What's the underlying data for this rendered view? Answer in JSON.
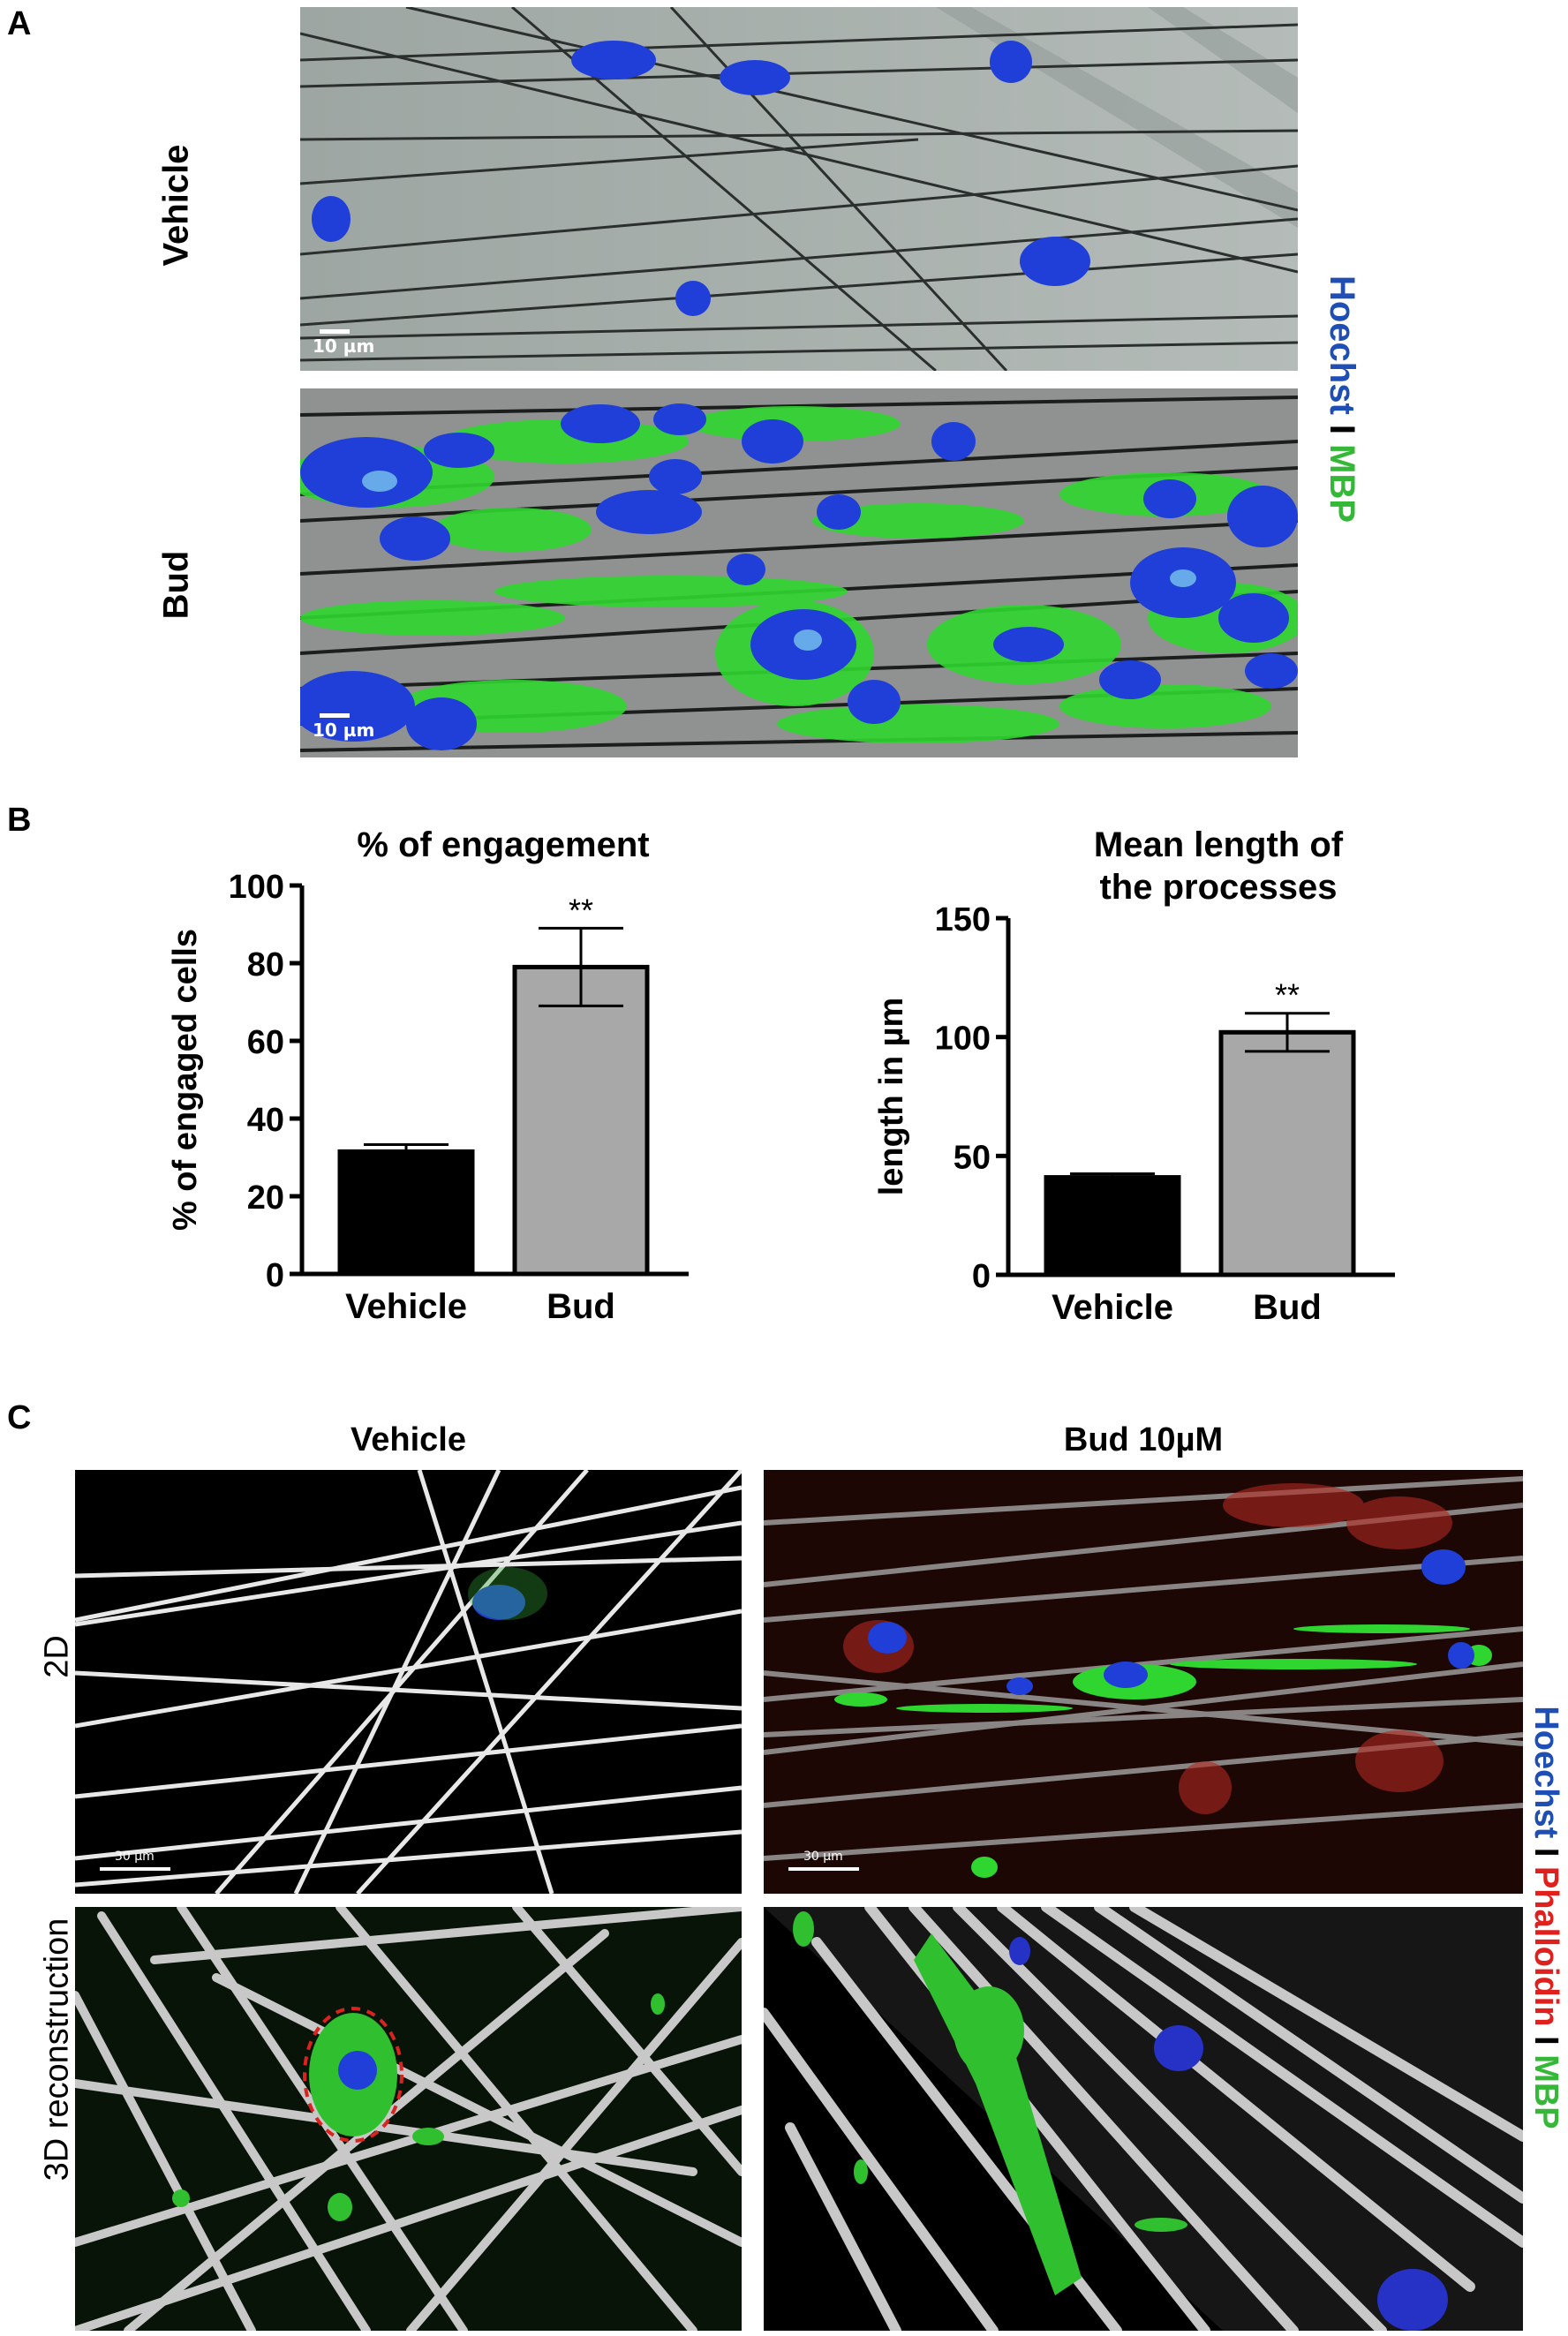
{
  "panel_A": {
    "letter": "A",
    "row_labels": [
      "Vehicle",
      "Bud"
    ],
    "scale_bar": "10 µm",
    "stain_legend": [
      {
        "text": "Hoechst",
        "color": "#1f4fb5"
      },
      {
        "text": " I ",
        "color": "#000000"
      },
      {
        "text": "MBP",
        "color": "#35b837"
      }
    ]
  },
  "panel_B": {
    "letter": "B"
  },
  "chart_data": [
    {
      "type": "bar",
      "title": "% of engagement",
      "ylabel": "% of engaged cells",
      "xlabel": "",
      "categories": [
        "Vehicle",
        "Bud"
      ],
      "values": [
        31.5,
        79
      ],
      "errors": [
        1.8,
        10
      ],
      "significance": [
        "",
        "**"
      ],
      "ylim": [
        0,
        100
      ],
      "yticks": [
        "0",
        "20",
        "40",
        "60",
        "80",
        "100"
      ],
      "bar_colors": [
        "#000000",
        "#a8a8a8"
      ]
    },
    {
      "type": "bar",
      "title": "Mean length of the processes",
      "title_lines": [
        "Mean length of",
        "the processes"
      ],
      "ylabel": "length in µm",
      "xlabel": "",
      "categories": [
        "Vehicle",
        "Bud"
      ],
      "values": [
        41,
        102
      ],
      "errors": [
        1.5,
        8
      ],
      "significance": [
        "",
        "**"
      ],
      "ylim": [
        0,
        150
      ],
      "yticks": [
        "0",
        "50",
        "100",
        "150"
      ],
      "bar_colors": [
        "#000000",
        "#a8a8a8"
      ]
    }
  ],
  "panel_C": {
    "letter": "C",
    "column_titles": [
      "Vehicle",
      "Bud 10µM"
    ],
    "row_labels": [
      "2D",
      "3D reconstruction"
    ],
    "scale_bar": "30 µm",
    "stain_legend": [
      {
        "text": "Hoechst",
        "color": "#1f4fb5"
      },
      {
        "text": " I ",
        "color": "#000000"
      },
      {
        "text": "Phalloidin",
        "color": "#e0201c"
      },
      {
        "text": " I ",
        "color": "#000000"
      },
      {
        "text": "MBP",
        "color": "#35b837"
      }
    ]
  }
}
